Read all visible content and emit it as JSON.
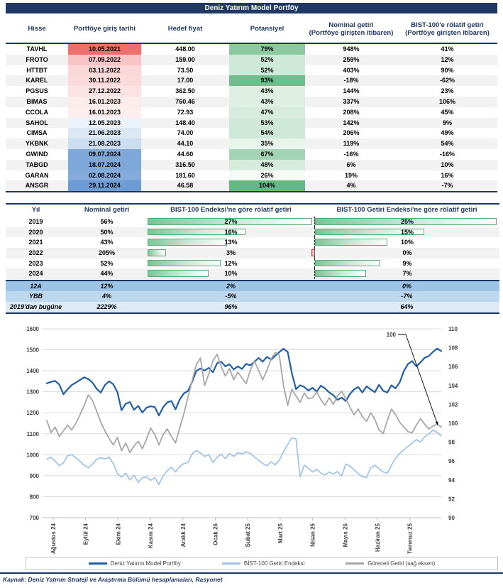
{
  "title": "Deniz Yatırım Model Portföy",
  "colors": {
    "navy": "#1f3864",
    "row_alt": "#f2f2f2",
    "bar_border_green": "#5aab77",
    "bar_negative_red": "#e0301e",
    "gridline": "#d9d9d9"
  },
  "portfolio_table": {
    "headers": {
      "stock": "Hisse",
      "entry": "Portföye giriş tarihi",
      "target": "Hedef fiyat",
      "potential": "Potansiyel",
      "nominal_l1": "Nominal getiri",
      "nominal_l2": "(Portföye girişten itibaren)",
      "relative_l1": "BIST-100'e rölatif getiri",
      "relative_l2": "(Portföye girişten itibaren)"
    },
    "rows": [
      {
        "stock": "TAVHL",
        "entry": "10.05.2021",
        "entry_bg": "#ee6f70",
        "target": "448.00",
        "potential": "79%",
        "potential_bg": "#8cc9a0",
        "nominal": "948%",
        "relative": "41%"
      },
      {
        "stock": "FROTO",
        "entry": "07.09.2022",
        "entry_bg": "#f8c4c6",
        "target": "159.00",
        "potential": "52%",
        "potential_bg": "#cfe9d8",
        "nominal": "259%",
        "relative": "12%"
      },
      {
        "stock": "HTTBT",
        "entry": "03.11.2022",
        "entry_bg": "#fad7d8",
        "target": "73.50",
        "potential": "52%",
        "potential_bg": "#cfe9d8",
        "nominal": "403%",
        "relative": "90%"
      },
      {
        "stock": "KAREL",
        "entry": "30.11.2022",
        "entry_bg": "#fadadb",
        "target": "17.00",
        "potential": "93%",
        "potential_bg": "#72bd8d",
        "nominal": "-18%",
        "relative": "-62%"
      },
      {
        "stock": "PGSUS",
        "entry": "27.12.2022",
        "entry_bg": "#fce2e2",
        "target": "362.50",
        "potential": "43%",
        "potential_bg": "#ddf0e3",
        "nominal": "144%",
        "relative": "23%"
      },
      {
        "stock": "BIMAS",
        "entry": "16.01.2023",
        "entry_bg": "#fdecec",
        "target": "760.46",
        "potential": "43%",
        "potential_bg": "#ddf0e3",
        "nominal": "337%",
        "relative": "106%"
      },
      {
        "stock": "CCOLA",
        "entry": "16.01.2023",
        "entry_bg": "#fdeeee",
        "target": "72.93",
        "potential": "47%",
        "potential_bg": "#d7ecde",
        "nominal": "208%",
        "relative": "45%"
      },
      {
        "stock": "SAHOL",
        "entry": "12.05.2023",
        "entry_bg": "#edf3fa",
        "target": "148.40",
        "potential": "53%",
        "potential_bg": "#cfe9d8",
        "nominal": "142%",
        "relative": "9%"
      },
      {
        "stock": "CIMSA",
        "entry": "21.06.2023",
        "entry_bg": "#dbe7f4",
        "target": "74.00",
        "potential": "54%",
        "potential_bg": "#cde8d6",
        "nominal": "206%",
        "relative": "49%"
      },
      {
        "stock": "YKBNK",
        "entry": "21.08.2023",
        "entry_bg": "#cdddf0",
        "target": "44.10",
        "potential": "35%",
        "potential_bg": "#e8f5ec",
        "nominal": "119%",
        "relative": "54%"
      },
      {
        "stock": "GWIND",
        "entry": "09.07.2024",
        "entry_bg": "#7ea8da",
        "target": "44.60",
        "potential": "67%",
        "potential_bg": "#a3d4b3",
        "nominal": "-16%",
        "relative": "-16%"
      },
      {
        "stock": "TABGD",
        "entry": "18.07.2024",
        "entry_bg": "#7ea8da",
        "target": "316.50",
        "potential": "48%",
        "potential_bg": "#d5ebdc",
        "nominal": "6%",
        "relative": "10%"
      },
      {
        "stock": "GARAN",
        "entry": "02.08.2024",
        "entry_bg": "#84abdb",
        "target": "181.60",
        "potential": "26%",
        "potential_bg": "#f7fbf8",
        "nominal": "19%",
        "relative": "16%"
      },
      {
        "stock": "ANSGR",
        "entry": "29.11.2024",
        "entry_bg": "#6d9cd5",
        "target": "46.58",
        "potential": "104%",
        "potential_bg": "#63b981",
        "nominal": "4%",
        "relative": "-7%"
      }
    ]
  },
  "yearly_table": {
    "headers": [
      "Yıl",
      "Nominal getiri",
      "BIST-100 Endeksi'ne göre rölatif getiri",
      "BIST-100 Getiri Endeksi'ne göre rölatif getiri"
    ],
    "bar_max_bist": 27.3,
    "bar_max_tr": 25.4,
    "rows": [
      {
        "year": "2019",
        "nominal": "56%",
        "rel_bist": 27,
        "rel_bist_label": "27%",
        "rel_tr": 25,
        "rel_tr_label": "25%",
        "rel_tr_negative": false
      },
      {
        "year": "2020",
        "nominal": "50%",
        "rel_bist": 16,
        "rel_bist_label": "16%",
        "rel_tr": 15,
        "rel_tr_label": "15%",
        "rel_tr_negative": false
      },
      {
        "year": "2021",
        "nominal": "43%",
        "rel_bist": 13,
        "rel_bist_label": "13%",
        "rel_tr": 10,
        "rel_tr_label": "10%",
        "rel_tr_negative": false
      },
      {
        "year": "2022",
        "nominal": "205%",
        "rel_bist": 3,
        "rel_bist_label": "3%",
        "rel_tr": 0,
        "rel_tr_label": "0%",
        "rel_tr_negative": true
      },
      {
        "year": "2023",
        "nominal": "52%",
        "rel_bist": 12,
        "rel_bist_label": "12%",
        "rel_tr": 9,
        "rel_tr_label": "9%",
        "rel_tr_negative": false
      },
      {
        "year": "2024",
        "nominal": "44%",
        "rel_bist": 10,
        "rel_bist_label": "10%",
        "rel_tr": 7,
        "rel_tr_label": "7%",
        "rel_tr_negative": false
      }
    ],
    "summary": [
      {
        "label": "12A",
        "nominal": "12%",
        "rel_bist": "2%",
        "rel_tr": "0%",
        "bg": "#9dc3e6"
      },
      {
        "label": "YBB",
        "nominal": "4%",
        "rel_bist": "-5%",
        "rel_tr": "-7%",
        "bg": "#bdd7ee"
      },
      {
        "label": "2019'dan bugüne",
        "nominal": "2229%",
        "rel_bist": "96%",
        "rel_tr": "64%",
        "bg": "#deebf7"
      }
    ]
  },
  "chart_data": {
    "type": "line",
    "x_labels": [
      "Ağustos 24",
      "Eylül 24",
      "Ekim 24",
      "Kasım 24",
      "Aralık 24",
      "Ocak 25",
      "Şubat 25",
      "Mart 25",
      "Nisan 25",
      "Mayıs 25",
      "Haziran 25",
      "Temmuz 25"
    ],
    "left_axis": {
      "min": 700,
      "max": 1600,
      "step": 100
    },
    "right_axis": {
      "min": 90,
      "max": 110,
      "step": 2
    },
    "grid": true,
    "legend_position": "bottom",
    "annotation": {
      "text": "100"
    },
    "series": [
      {
        "name": "Deniz Yatırım Model Portföy",
        "color": "#1f5fa8",
        "axis": "left",
        "width": 2.2,
        "values": [
          1340,
          1347,
          1352,
          1334,
          1288,
          1312,
          1332,
          1344,
          1356,
          1369,
          1360,
          1344,
          1314,
          1296,
          1332,
          1350,
          1336,
          1298,
          1212,
          1243,
          1251,
          1214,
          1233,
          1201,
          1224,
          1231,
          1227,
          1187,
          1226,
          1249,
          1256,
          1216,
          1263,
          1292,
          1304,
          1347,
          1399,
          1411,
          1401,
          1414,
          1393,
          1436,
          1443,
          1421,
          1431,
          1406,
          1421,
          1409,
          1433,
          1426,
          1443,
          1461,
          1443,
          1466,
          1453,
          1471,
          1489,
          1505,
          1490,
          1390,
          1312,
          1331,
          1323,
          1306,
          1319,
          1301,
          1329,
          1316,
          1297,
          1284,
          1261,
          1272,
          1256,
          1289,
          1311,
          1323,
          1296,
          1326,
          1311,
          1298,
          1333,
          1305,
          1296,
          1331,
          1316,
          1346,
          1399,
          1433,
          1446,
          1421,
          1440,
          1462,
          1470,
          1490,
          1506,
          1494
        ]
      },
      {
        "name": "BİST-100 Getiri Endeksi",
        "color": "#9dc3e6",
        "axis": "left",
        "width": 1.7,
        "values": [
          978,
          988,
          970,
          948,
          962,
          996,
          1000,
          985,
          968,
          950,
          938,
          955,
          978,
          986,
          980,
          988,
          958,
          910,
          893,
          912,
          880,
          902,
          868,
          890,
          895,
          878,
          890,
          858,
          900,
          924,
          940,
          918,
          944,
          958,
          963,
          1004,
          1020,
          1008,
          992,
          1000,
          963,
          988,
          1002,
          982,
          1006,
          992,
          1010,
          1004,
          1014,
          1006,
          990,
          974,
          958,
          948,
          966,
          952,
          974,
          1014,
          1048,
          1080,
          1076,
          895,
          950,
          936,
          918,
          930,
          912,
          904,
          918,
          908,
          920,
          898,
          955,
          946,
          928,
          910,
          895,
          892,
          938,
          950,
          934,
          918,
          912,
          950,
          984,
          1006,
          1024,
          1040,
          1056,
          1072,
          1060,
          1086,
          1098,
          1118,
          1106,
          1090
        ]
      },
      {
        "name": "Göreceli Getiri (sağ eksen)",
        "color": "#a6a6a6",
        "axis": "right",
        "width": 1.8,
        "values": [
          100.3,
          99.0,
          99.6,
          98.6,
          99.2,
          99.8,
          99.3,
          100.0,
          100.9,
          101.9,
          103.0,
          102.4,
          101.3,
          100.1,
          99.2,
          98.4,
          97.7,
          98.5,
          97.1,
          97.9,
          96.9,
          97.6,
          98.1,
          97.3,
          98.3,
          99.5,
          98.8,
          97.7,
          98.8,
          99.4,
          98.6,
          97.9,
          99.5,
          101.0,
          102.8,
          104.5,
          106.2,
          106.9,
          104.0,
          105.2,
          106.6,
          107.3,
          106.0,
          105.0,
          105.8,
          104.6,
          105.4,
          104.8,
          104.2,
          105.6,
          106.6,
          105.6,
          104.6,
          105.6,
          106.8,
          107.5,
          107.2,
          104.0,
          101.9,
          103.6,
          102.9,
          102.2,
          103.2,
          102.6,
          102.7,
          103.3,
          102.5,
          101.9,
          102.7,
          102.0,
          102.9,
          103.4,
          102.6,
          101.7,
          100.9,
          101.5,
          100.7,
          100.2,
          101.1,
          100.4,
          99.3,
          98.9,
          100.3,
          101.5,
          100.9,
          100.1,
          99.6,
          99.1,
          99.0,
          99.8,
          100.5,
          99.9,
          99.4,
          99.7,
          99.9,
          99.6
        ]
      }
    ]
  },
  "footer": {
    "source": "Kaynak: Deniz Yatırım Strateji ve Araştırma Bölümü hesaplamaları, Rasyonet"
  }
}
